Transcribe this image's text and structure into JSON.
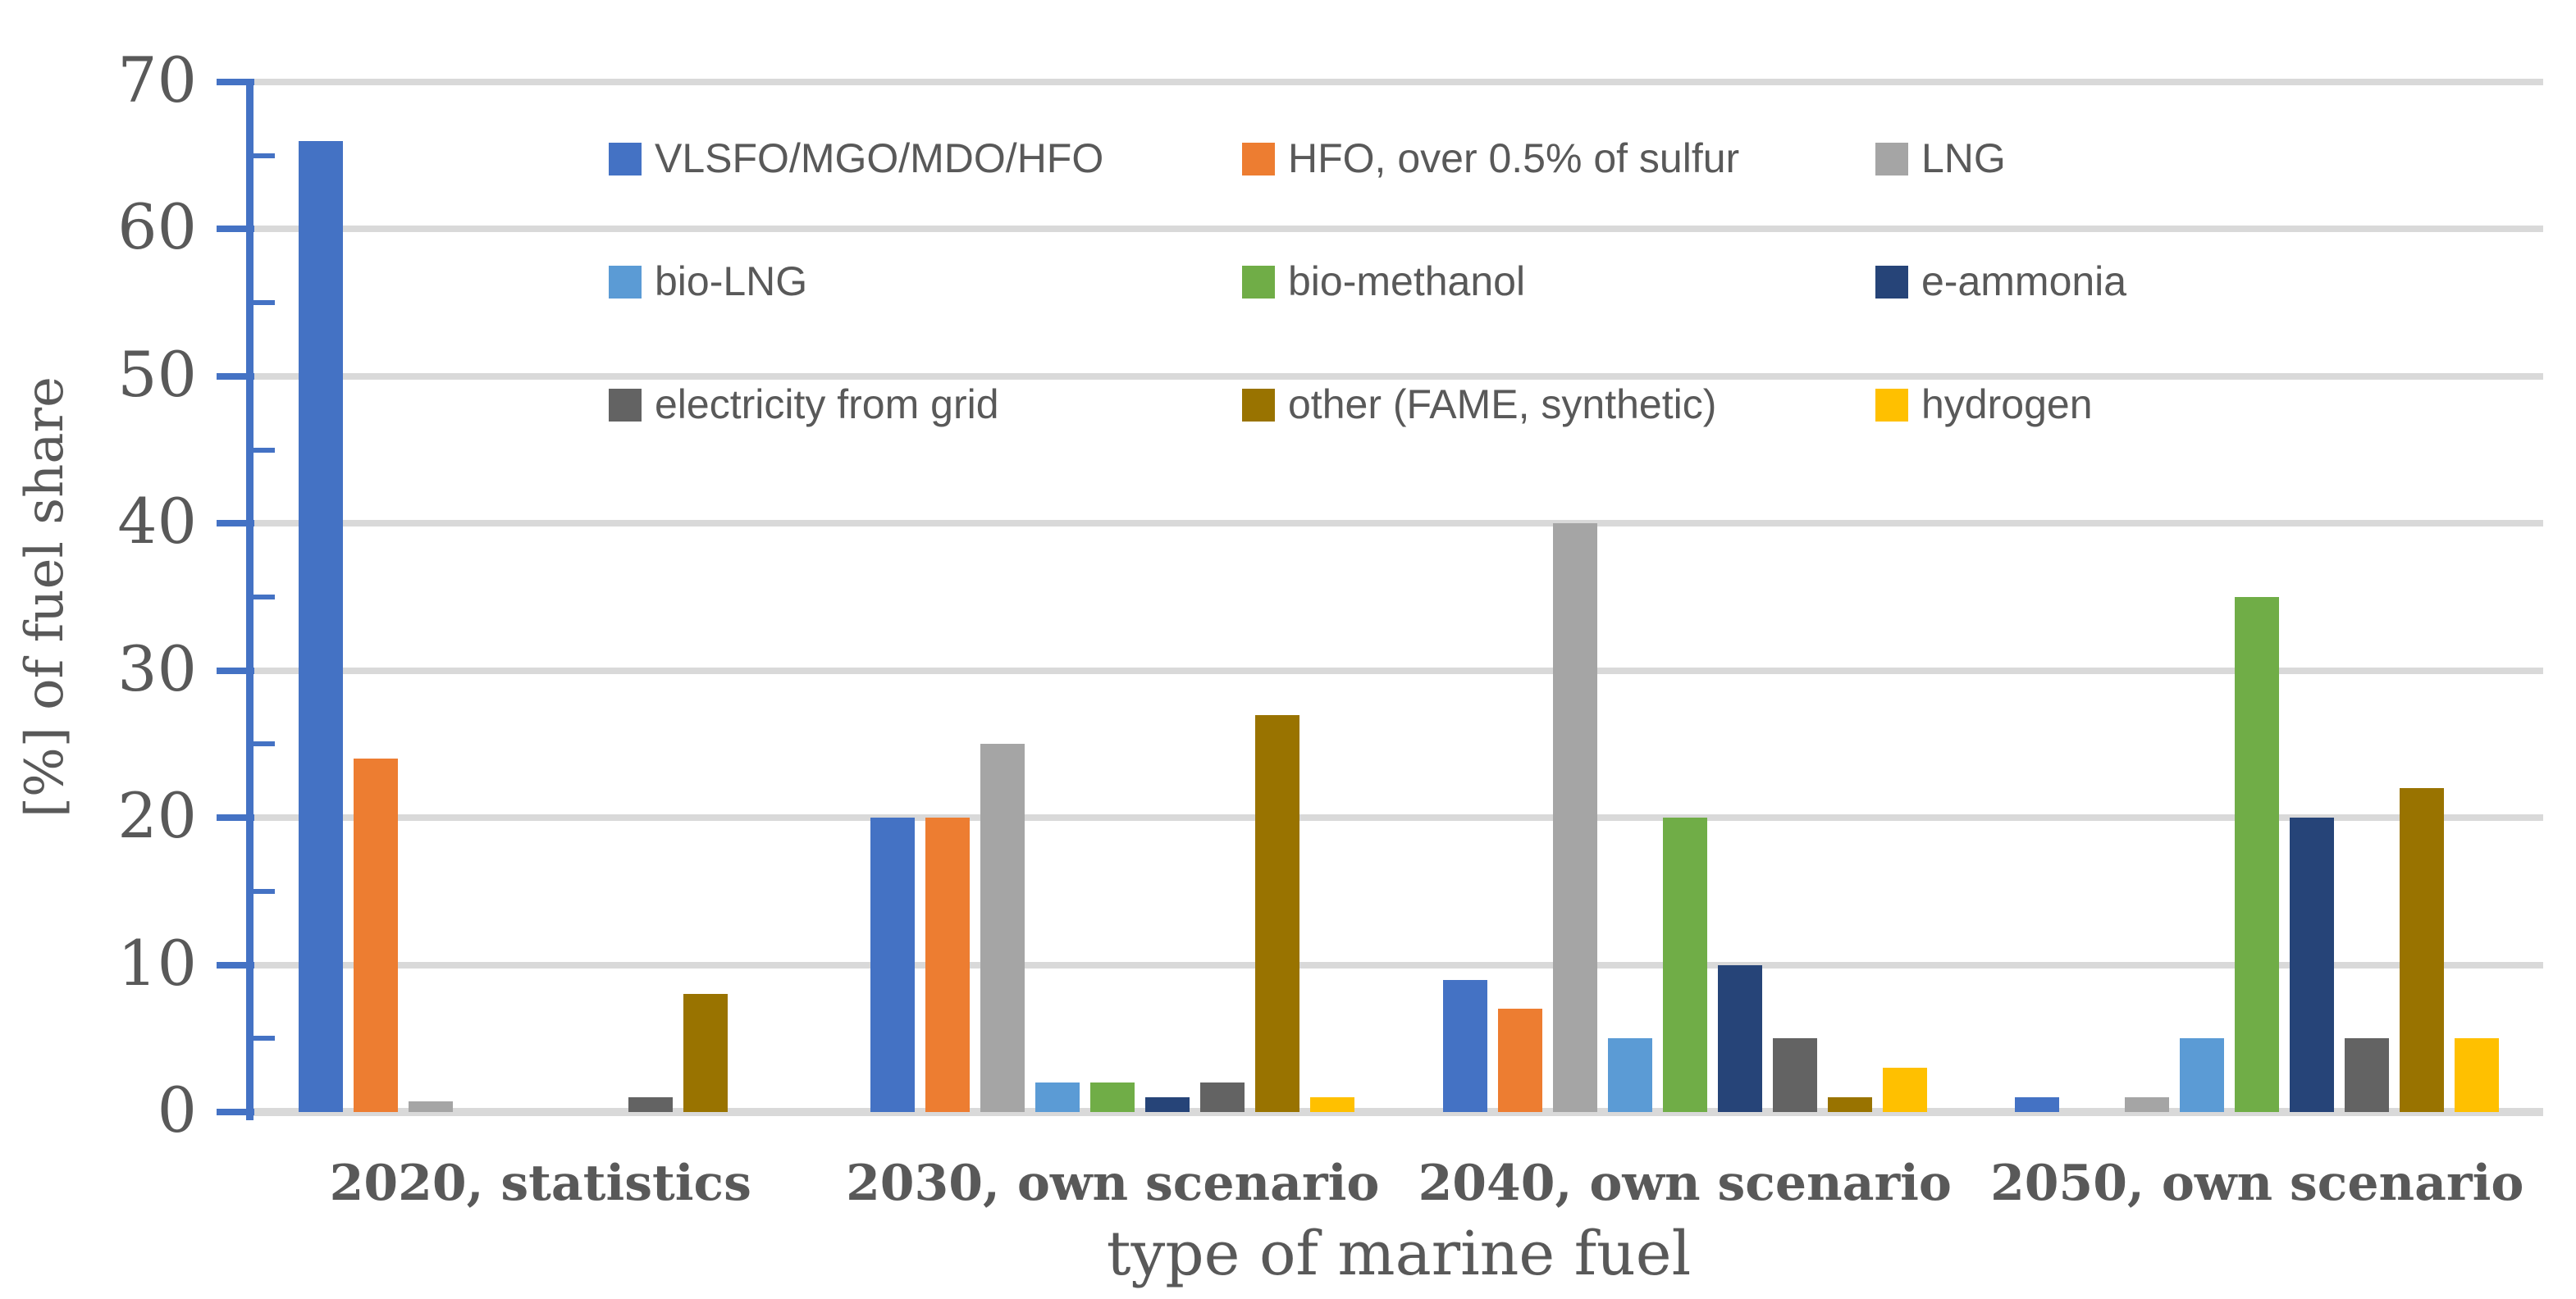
{
  "chart_data": {
    "type": "bar",
    "title": "",
    "xlabel": "type of marine fuel",
    "ylabel": "[%] of fuel share",
    "ylim": [
      0,
      70
    ],
    "y_ticks": [
      0,
      10,
      20,
      30,
      40,
      50,
      60,
      70
    ],
    "y_minor_tick_step": 5,
    "grid": "horizontal",
    "legend_position": "top-inside",
    "legend_columns": 3,
    "categories": [
      "2020, statistics",
      "2030, own scenario",
      "2040, own scenario",
      "2050, own scenario"
    ],
    "series": [
      {
        "name": "VLSFO/MGO/MDO/HFO",
        "color": "#4472C4",
        "values": [
          66,
          20,
          9,
          1
        ]
      },
      {
        "name": "HFO, over 0.5% of sulfur",
        "color": "#ED7D31",
        "values": [
          24,
          20,
          7,
          0
        ]
      },
      {
        "name": "LNG",
        "color": "#A5A5A5",
        "values": [
          0.7,
          25,
          40,
          1
        ]
      },
      {
        "name": "bio-LNG",
        "color": "#5B9BD5",
        "values": [
          0,
          2,
          5,
          5
        ]
      },
      {
        "name": "bio-methanol",
        "color": "#70AD47",
        "values": [
          0,
          2,
          20,
          35
        ]
      },
      {
        "name": "e-ammonia",
        "color": "#264478",
        "values": [
          0,
          1,
          10,
          20
        ]
      },
      {
        "name": "electricity from grid",
        "color": "#636363",
        "values": [
          1,
          2,
          5,
          5
        ]
      },
      {
        "name": "other (FAME, synthetic)",
        "color": "#997300",
        "values": [
          8,
          27,
          1,
          22
        ]
      },
      {
        "name": "hydrogen",
        "color": "#FFC000",
        "values": [
          0,
          1,
          3,
          5
        ]
      }
    ]
  },
  "style": {
    "axis_color": "#4472C4",
    "grid_color": "#D9D9D9",
    "text_color": "#595959",
    "background": "#FFFFFF"
  }
}
